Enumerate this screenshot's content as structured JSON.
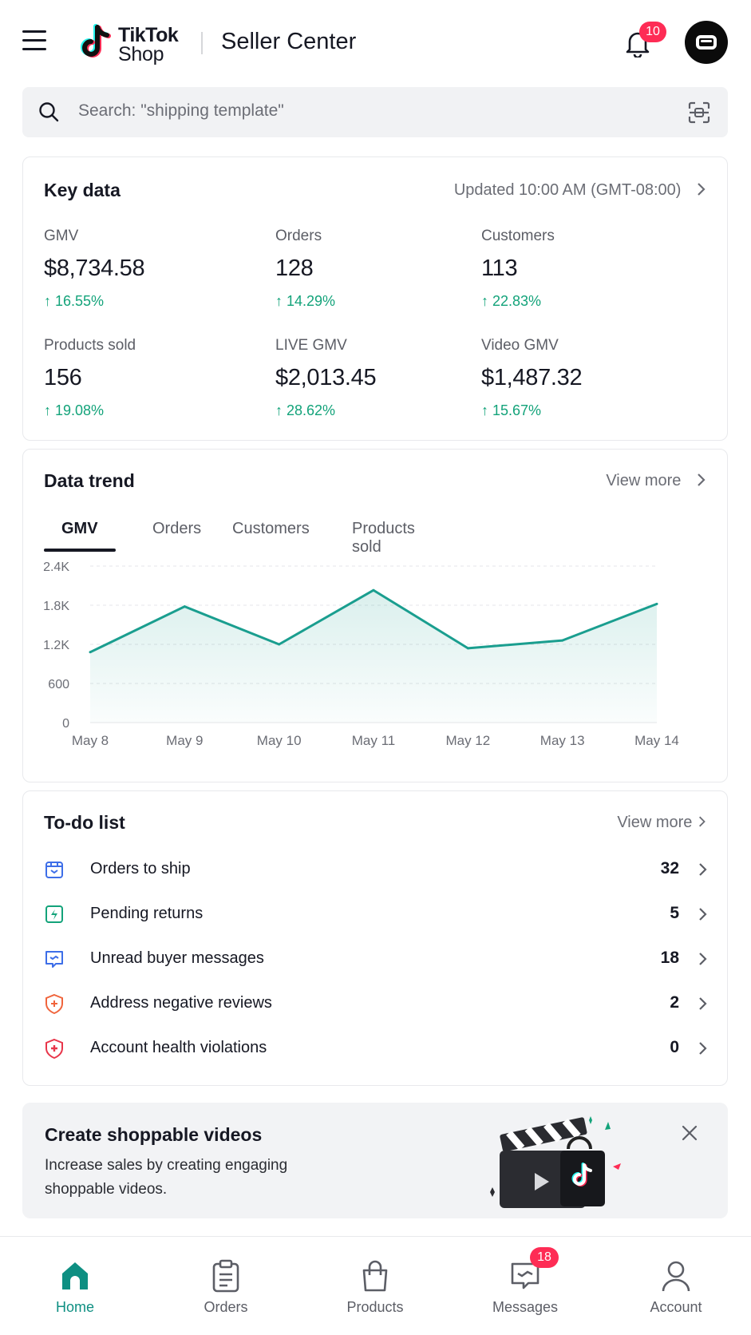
{
  "header": {
    "logo_line1": "TikTok",
    "logo_line2": "Shop",
    "title": "Seller Center",
    "notification_count": "10"
  },
  "search": {
    "placeholder": "Search: \"shipping template\""
  },
  "key_data": {
    "title": "Key data",
    "updated": "Updated 10:00 AM (GMT-08:00)",
    "metrics": [
      {
        "label": "GMV",
        "value": "$8,734.58",
        "change": "16.55%"
      },
      {
        "label": "Orders",
        "value": "128",
        "change": "14.29%"
      },
      {
        "label": "Customers",
        "value": "113",
        "change": "22.83%"
      },
      {
        "label": "Products sold",
        "value": "156",
        "change": "19.08%"
      },
      {
        "label": "LIVE GMV",
        "value": "$2,013.45",
        "change": "28.62%"
      },
      {
        "label": "Video GMV",
        "value": "$1,487.32",
        "change": "15.67%"
      }
    ]
  },
  "data_trend": {
    "title": "Data trend",
    "view_more": "View more",
    "tabs": [
      "GMV",
      "Orders",
      "Customers",
      "Products sold"
    ],
    "active_tab": "GMV"
  },
  "chart_data": {
    "type": "area",
    "x": [
      "May 8",
      "May 9",
      "May 10",
      "May 11",
      "May 12",
      "May 13",
      "May 14"
    ],
    "series": [
      {
        "values": [
          1080,
          1780,
          1200,
          2030,
          1140,
          1260,
          1820
        ]
      }
    ],
    "ylim": [
      0,
      2400
    ],
    "yticks": [
      0,
      600,
      1200,
      1800,
      2400
    ],
    "ytick_labels": [
      "0",
      "600",
      "1.2K",
      "1.8K",
      "2.4K"
    ],
    "grid": true,
    "color": "#1a9e8f"
  },
  "todo": {
    "title": "To-do list",
    "view_more": "View more",
    "items": [
      {
        "label": "Orders to ship",
        "count": "32",
        "icon": "box-icon",
        "color": "#3d6ee8"
      },
      {
        "label": "Pending returns",
        "count": "5",
        "icon": "return-icon",
        "color": "#13a37a"
      },
      {
        "label": "Unread buyer messages",
        "count": "18",
        "icon": "message-icon",
        "color": "#3d6ee8"
      },
      {
        "label": "Address negative reviews",
        "count": "2",
        "icon": "shield-plus-icon",
        "color": "#f0643c"
      },
      {
        "label": "Account health violations",
        "count": "0",
        "icon": "shield-alert-icon",
        "color": "#e8354a"
      }
    ]
  },
  "banner": {
    "title": "Create shoppable videos",
    "description": "Increase sales by creating engaging shoppable videos."
  },
  "bottom_nav": {
    "items": [
      {
        "label": "Home",
        "icon": "home-icon",
        "active": true
      },
      {
        "label": "Orders",
        "icon": "clipboard-icon",
        "active": false
      },
      {
        "label": "Products",
        "icon": "bag-icon",
        "active": false
      },
      {
        "label": "Messages",
        "icon": "chat-icon",
        "active": false
      },
      {
        "label": "Account",
        "icon": "person-icon",
        "active": false
      }
    ],
    "messages_badge": "18"
  },
  "colors": {
    "accent": "#0e8f82",
    "positive": "#13a37a",
    "badge": "#fe2c55"
  }
}
